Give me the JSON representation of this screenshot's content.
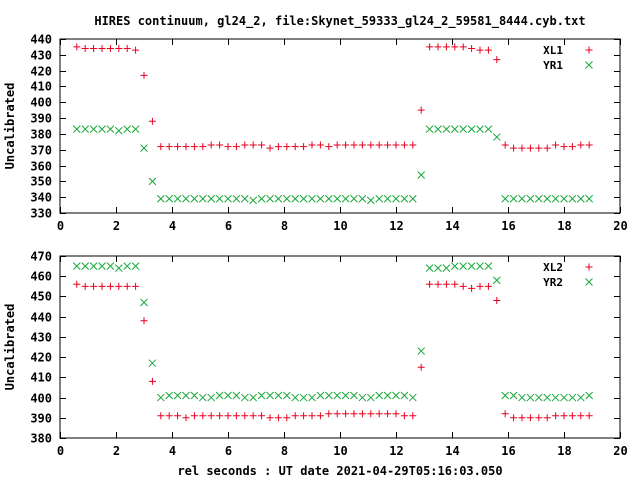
{
  "title": "HIRES continuum, gl24_2, file:Skynet_59333_gl24_2_59581_8444.cyb.txt",
  "xlabel": "rel seconds : UT date 2021-04-29T05:16:03.050",
  "colors": {
    "red": "#e8001c",
    "green": "#19a83a"
  },
  "chart_data": [
    {
      "type": "scatter",
      "ylabel": "Uncalibrated",
      "xlim": [
        0,
        20
      ],
      "ylim": [
        330,
        440
      ],
      "xticks": [
        0,
        2,
        4,
        6,
        8,
        10,
        12,
        14,
        16,
        18,
        20
      ],
      "yticks": [
        330,
        340,
        350,
        360,
        370,
        380,
        390,
        400,
        410,
        420,
        430,
        440
      ],
      "legend": "top-right",
      "series": [
        {
          "name": "XL1",
          "marker": "plus",
          "color": "#e8001c",
          "x": [
            0.6,
            0.9,
            1.2,
            1.5,
            1.8,
            2.1,
            2.4,
            2.7,
            3.0,
            3.3,
            3.6,
            3.9,
            4.2,
            4.5,
            4.8,
            5.1,
            5.4,
            5.7,
            6.0,
            6.3,
            6.6,
            6.9,
            7.2,
            7.5,
            7.8,
            8.1,
            8.4,
            8.7,
            9.0,
            9.3,
            9.6,
            9.9,
            10.2,
            10.5,
            10.8,
            11.1,
            11.4,
            11.7,
            12.0,
            12.3,
            12.6,
            12.9,
            13.2,
            13.5,
            13.8,
            14.1,
            14.4,
            14.7,
            15.0,
            15.3,
            15.6,
            15.9,
            16.2,
            16.5,
            16.8,
            17.1,
            17.4,
            17.7,
            18.0,
            18.3,
            18.6,
            18.9
          ],
          "y": [
            435,
            434,
            434,
            434,
            434,
            434,
            434,
            433,
            417,
            388,
            372,
            372,
            372,
            372,
            372,
            372,
            373,
            373,
            372,
            372,
            373,
            373,
            373,
            371,
            372,
            372,
            372,
            372,
            373,
            373,
            372,
            373,
            373,
            373,
            373,
            373,
            373,
            373,
            373,
            373,
            373,
            395,
            435,
            435,
            435,
            435,
            435,
            434,
            433,
            433,
            427,
            373,
            371,
            371,
            371,
            371,
            371,
            373,
            372,
            372,
            373,
            373
          ]
        },
        {
          "name": "YR1",
          "marker": "cross",
          "color": "#19a83a",
          "x": [
            0.6,
            0.9,
            1.2,
            1.5,
            1.8,
            2.1,
            2.4,
            2.7,
            3.0,
            3.3,
            3.6,
            3.9,
            4.2,
            4.5,
            4.8,
            5.1,
            5.4,
            5.7,
            6.0,
            6.3,
            6.6,
            6.9,
            7.2,
            7.5,
            7.8,
            8.1,
            8.4,
            8.7,
            9.0,
            9.3,
            9.6,
            9.9,
            10.2,
            10.5,
            10.8,
            11.1,
            11.4,
            11.7,
            12.0,
            12.3,
            12.6,
            12.9,
            13.2,
            13.5,
            13.8,
            14.1,
            14.4,
            14.7,
            15.0,
            15.3,
            15.6,
            15.9,
            16.2,
            16.5,
            16.8,
            17.1,
            17.4,
            17.7,
            18.0,
            18.3,
            18.6,
            18.9
          ],
          "y": [
            383,
            383,
            383,
            383,
            383,
            382,
            383,
            383,
            371,
            350,
            339,
            339,
            339,
            339,
            339,
            339,
            339,
            339,
            339,
            339,
            339,
            338,
            339,
            339,
            339,
            339,
            339,
            339,
            339,
            339,
            339,
            339,
            339,
            339,
            339,
            338,
            339,
            339,
            339,
            339,
            339,
            354,
            383,
            383,
            383,
            383,
            383,
            383,
            383,
            383,
            378,
            339,
            339,
            339,
            339,
            339,
            339,
            339,
            339,
            339,
            339,
            339
          ]
        }
      ]
    },
    {
      "type": "scatter",
      "ylabel": "Uncalibrated",
      "xlim": [
        0,
        20
      ],
      "ylim": [
        380,
        470
      ],
      "xticks": [
        0,
        2,
        4,
        6,
        8,
        10,
        12,
        14,
        16,
        18,
        20
      ],
      "yticks": [
        380,
        390,
        400,
        410,
        420,
        430,
        440,
        450,
        460,
        470
      ],
      "legend": "top-right",
      "series": [
        {
          "name": "XL2",
          "marker": "plus",
          "color": "#e8001c",
          "x": [
            0.6,
            0.9,
            1.2,
            1.5,
            1.8,
            2.1,
            2.4,
            2.7,
            3.0,
            3.3,
            3.6,
            3.9,
            4.2,
            4.5,
            4.8,
            5.1,
            5.4,
            5.7,
            6.0,
            6.3,
            6.6,
            6.9,
            7.2,
            7.5,
            7.8,
            8.1,
            8.4,
            8.7,
            9.0,
            9.3,
            9.6,
            9.9,
            10.2,
            10.5,
            10.8,
            11.1,
            11.4,
            11.7,
            12.0,
            12.3,
            12.6,
            12.9,
            13.2,
            13.5,
            13.8,
            14.1,
            14.4,
            14.7,
            15.0,
            15.3,
            15.6,
            15.9,
            16.2,
            16.5,
            16.8,
            17.1,
            17.4,
            17.7,
            18.0,
            18.3,
            18.6,
            18.9
          ],
          "y": [
            456,
            455,
            455,
            455,
            455,
            455,
            455,
            455,
            438,
            408,
            391,
            391,
            391,
            390,
            391,
            391,
            391,
            391,
            391,
            391,
            391,
            391,
            391,
            390,
            390,
            390,
            391,
            391,
            391,
            391,
            392,
            392,
            392,
            392,
            392,
            392,
            392,
            392,
            392,
            391,
            391,
            415,
            456,
            456,
            456,
            456,
            455,
            454,
            455,
            455,
            448,
            392,
            390,
            390,
            390,
            390,
            390,
            391,
            391,
            391,
            391,
            391
          ]
        },
        {
          "name": "YR2",
          "marker": "cross",
          "color": "#19a83a",
          "x": [
            0.6,
            0.9,
            1.2,
            1.5,
            1.8,
            2.1,
            2.4,
            2.7,
            3.0,
            3.3,
            3.6,
            3.9,
            4.2,
            4.5,
            4.8,
            5.1,
            5.4,
            5.7,
            6.0,
            6.3,
            6.6,
            6.9,
            7.2,
            7.5,
            7.8,
            8.1,
            8.4,
            8.7,
            9.0,
            9.3,
            9.6,
            9.9,
            10.2,
            10.5,
            10.8,
            11.1,
            11.4,
            11.7,
            12.0,
            12.3,
            12.6,
            12.9,
            13.2,
            13.5,
            13.8,
            14.1,
            14.4,
            14.7,
            15.0,
            15.3,
            15.6,
            15.9,
            16.2,
            16.5,
            16.8,
            17.1,
            17.4,
            17.7,
            18.0,
            18.3,
            18.6,
            18.9
          ],
          "y": [
            465,
            465,
            465,
            465,
            465,
            464,
            465,
            465,
            447,
            417,
            400,
            401,
            401,
            401,
            401,
            400,
            400,
            401,
            401,
            401,
            400,
            400,
            401,
            401,
            401,
            401,
            400,
            400,
            400,
            401,
            401,
            401,
            401,
            401,
            400,
            400,
            401,
            401,
            401,
            401,
            400,
            423,
            464,
            464,
            464,
            465,
            465,
            465,
            465,
            465,
            458,
            401,
            401,
            400,
            400,
            400,
            400,
            400,
            400,
            400,
            400,
            401
          ]
        }
      ]
    }
  ]
}
